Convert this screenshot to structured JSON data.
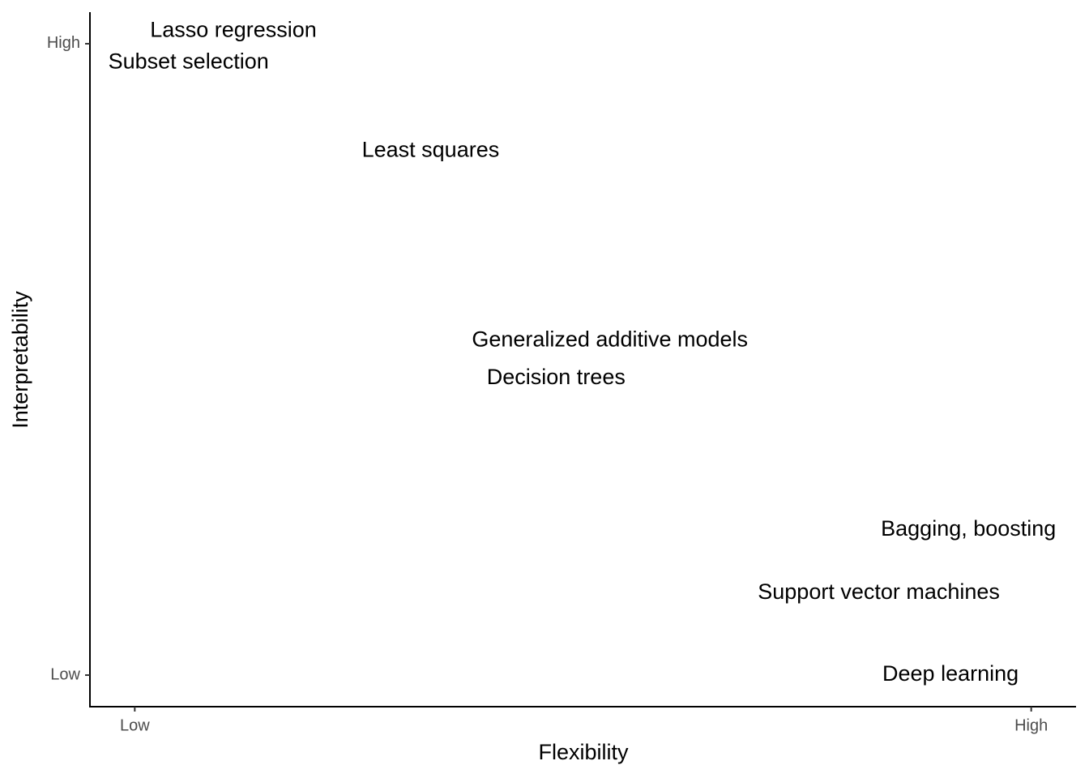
{
  "chart_data": {
    "type": "scatter",
    "x_label": "Flexibility",
    "y_label": "Interpretability",
    "labels": [
      "Lasso regression",
      "Subset selection",
      "Least squares",
      "Generalized additive models",
      "Decision trees",
      "Bagging, boosting",
      "Support vector machines",
      "Deep learning"
    ],
    "x": [
      0.11,
      0.06,
      0.33,
      0.53,
      0.47,
      0.93,
      0.83,
      0.91
    ],
    "values": [
      1.02,
      0.97,
      0.83,
      0.53,
      0.47,
      0.23,
      0.13,
      0
    ],
    "color": "#000000",
    "xlim": [
      -0.05,
      1.05
    ],
    "ylim": [
      -0.05,
      1.05
    ],
    "xticks": [
      {
        "value": 0,
        "label": "Low"
      },
      {
        "value": 1,
        "label": "High"
      }
    ],
    "yticks": [
      {
        "value": 0,
        "label": "Low"
      },
      {
        "value": 1,
        "label": "High"
      }
    ],
    "grid": false
  }
}
